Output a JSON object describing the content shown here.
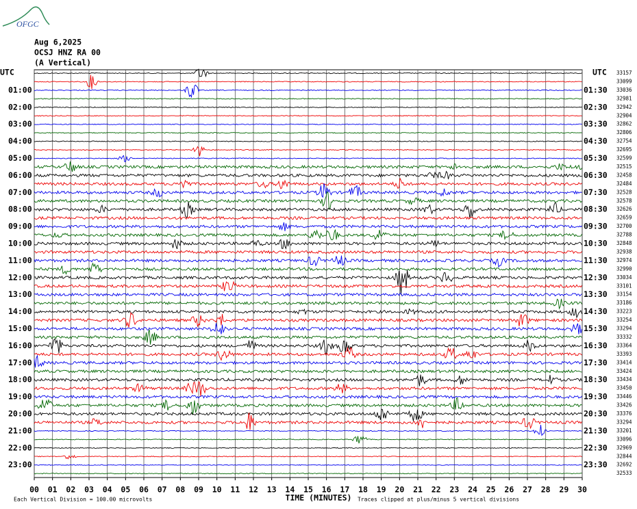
{
  "header": {
    "logo": "OFGC",
    "date": "Aug 6,2025",
    "station": "OCSJ HNZ RA 00",
    "component": "(A Vertical)"
  },
  "left_axis": {
    "title": "UTC",
    "labels": [
      "01:00",
      "02:00",
      "03:00",
      "04:00",
      "05:00",
      "06:00",
      "07:00",
      "08:00",
      "09:00",
      "10:00",
      "11:00",
      "12:00",
      "13:00",
      "14:00",
      "15:00",
      "16:00",
      "17:00",
      "18:00",
      "19:00",
      "20:00",
      "21:00",
      "22:00",
      "23:00"
    ]
  },
  "right_axis": {
    "title": "UTC",
    "labels": [
      "01:30",
      "02:30",
      "03:30",
      "04:30",
      "05:30",
      "06:30",
      "07:30",
      "08:30",
      "09:30",
      "10:30",
      "11:30",
      "12:30",
      "13:30",
      "14:30",
      "15:30",
      "16:30",
      "17:30",
      "18:30",
      "19:30",
      "20:30",
      "21:30",
      "22:30",
      "23:30"
    ]
  },
  "trace_counts": [
    "33157",
    "33099",
    "33036",
    "32981",
    "32942",
    "32904",
    "32862",
    "32806",
    "32754",
    "32695",
    "32599",
    "32515",
    "32458",
    "32484",
    "32528",
    "32578",
    "32626",
    "32659",
    "32700",
    "32788",
    "32848",
    "32938",
    "32974",
    "32990",
    "33034",
    "33101",
    "33154",
    "33186",
    "33223",
    "33254",
    "33294",
    "33332",
    "33364",
    "33393",
    "33414",
    "33424",
    "33434",
    "33450",
    "33446",
    "33426",
    "33376",
    "33294",
    "33201",
    "33096",
    "32969",
    "32844",
    "32692",
    "32533"
  ],
  "x_axis": {
    "ticks": [
      "00",
      "01",
      "02",
      "03",
      "04",
      "05",
      "06",
      "07",
      "08",
      "09",
      "10",
      "11",
      "12",
      "13",
      "14",
      "15",
      "16",
      "17",
      "18",
      "19",
      "20",
      "21",
      "22",
      "23",
      "24",
      "25",
      "26",
      "27",
      "28",
      "29",
      "30"
    ],
    "title": "TIME (MINUTES)"
  },
  "footer": {
    "scale": "Each Vertical Division =  100.00 microvolts",
    "clip": "Traces clipped at plus/minus 5 vertical divisions"
  }
}
